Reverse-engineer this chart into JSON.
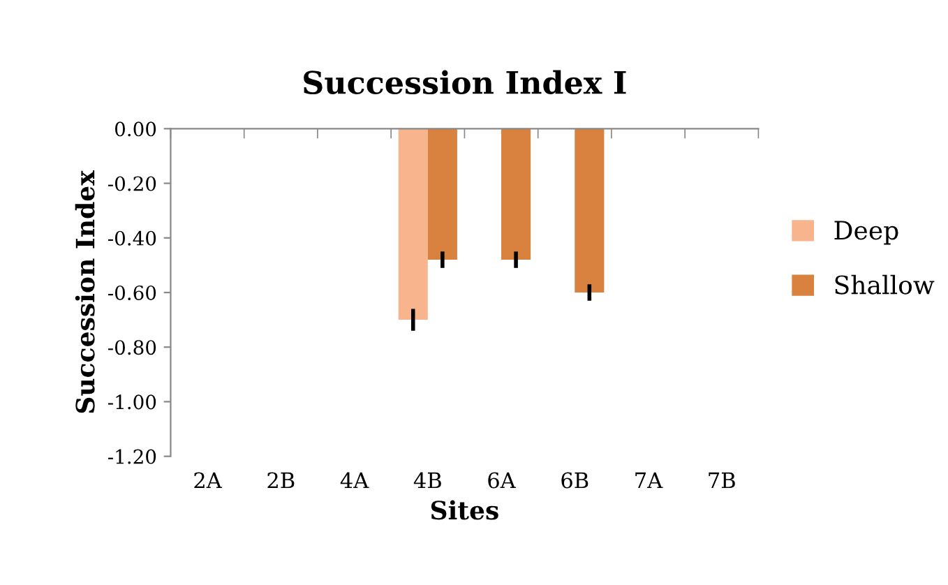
{
  "chart_data": {
    "type": "bar",
    "title": "Succession Index I",
    "xlabel": "Sites",
    "ylabel": "Succession Index",
    "categories": [
      "2A",
      "2B",
      "4A",
      "4B",
      "6A",
      "6B",
      "7A",
      "7B"
    ],
    "series": [
      {
        "name": "Deep",
        "color": "#f8b58d",
        "values": [
          null,
          null,
          null,
          -0.7,
          null,
          null,
          null,
          null
        ],
        "errors": [
          null,
          null,
          null,
          0.04,
          null,
          null,
          null,
          null
        ]
      },
      {
        "name": "Shallow",
        "color": "#d9823f",
        "values": [
          null,
          null,
          null,
          -0.48,
          -0.48,
          -0.6,
          null,
          null
        ],
        "errors": [
          null,
          null,
          null,
          0.03,
          0.03,
          0.03,
          null,
          null
        ]
      }
    ],
    "ylim": [
      -1.2,
      0
    ],
    "yticks": [
      {
        "value": -1.2,
        "label": "-1.20"
      },
      {
        "value": -1.0,
        "label": "-1.00"
      },
      {
        "value": -0.8,
        "label": "-0.80"
      },
      {
        "value": -0.6,
        "label": "-0.60"
      },
      {
        "value": -0.4,
        "label": "-0.40"
      },
      {
        "value": -0.2,
        "label": "-0.20"
      },
      {
        "value": 0,
        "label": "0.00"
      }
    ],
    "grid": false,
    "legend": "right"
  }
}
